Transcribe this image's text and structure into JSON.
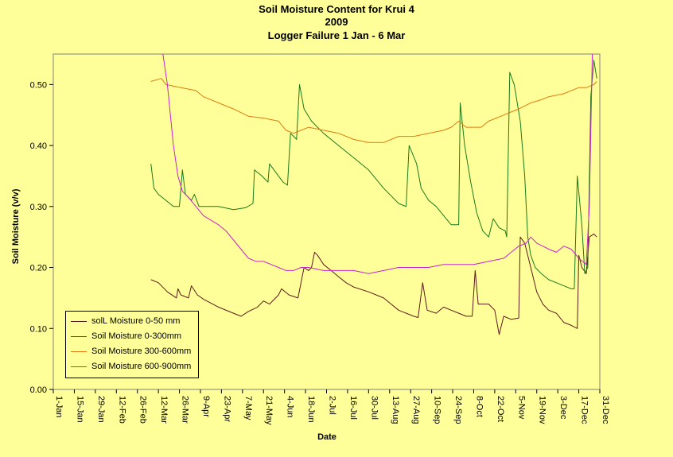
{
  "chart_data": {
    "type": "line",
    "title": "Soil Moisture Content for Krui 4",
    "subtitle": "2009",
    "subtitle2": "Logger Failure 1 Jan - 6 Mar",
    "xlabel": "Date",
    "ylabel": "Soil Moisture (v/v)",
    "x_ticks": [
      "1-Jan",
      "15-Jan",
      "29-Jan",
      "12-Feb",
      "26-Feb",
      "12-Mar",
      "26-Mar",
      "9-Apr",
      "23-Apr",
      "7-May",
      "21-May",
      "4-Jun",
      "18-Jun",
      "2-Jul",
      "16-Jul",
      "30-Jul",
      "13-Aug",
      "27-Aug",
      "10-Sep",
      "24-Sep",
      "8-Oct",
      "22-Oct",
      "5-Nov",
      "19-Nov",
      "3-Dec",
      "17-Dec",
      "31-Dec"
    ],
    "y_ticks": [
      "0.00",
      "0.10",
      "0.20",
      "0.30",
      "0.40",
      "0.50"
    ],
    "ylim": [
      0,
      0.55
    ],
    "x_unit": "day of year (1-Jan = 0)",
    "xlim": [
      0,
      364
    ],
    "legend_position": "bottom-left",
    "series": [
      {
        "name": "solL Moisture 0-50 mm",
        "color": "#5C1A1A",
        "points": [
          [
            65,
            0.18
          ],
          [
            70,
            0.175
          ],
          [
            76,
            0.16
          ],
          [
            82,
            0.15
          ],
          [
            83,
            0.165
          ],
          [
            85,
            0.155
          ],
          [
            90,
            0.15
          ],
          [
            92,
            0.17
          ],
          [
            96,
            0.155
          ],
          [
            100,
            0.148
          ],
          [
            110,
            0.135
          ],
          [
            120,
            0.125
          ],
          [
            125,
            0.12
          ],
          [
            130,
            0.128
          ],
          [
            136,
            0.135
          ],
          [
            140,
            0.145
          ],
          [
            144,
            0.14
          ],
          [
            150,
            0.155
          ],
          [
            152,
            0.165
          ],
          [
            157,
            0.155
          ],
          [
            163,
            0.15
          ],
          [
            165,
            0.175
          ],
          [
            167,
            0.2
          ],
          [
            170,
            0.195
          ],
          [
            172,
            0.2
          ],
          [
            174,
            0.225
          ],
          [
            176,
            0.22
          ],
          [
            180,
            0.205
          ],
          [
            185,
            0.195
          ],
          [
            190,
            0.185
          ],
          [
            195,
            0.175
          ],
          [
            200,
            0.168
          ],
          [
            210,
            0.16
          ],
          [
            220,
            0.15
          ],
          [
            230,
            0.13
          ],
          [
            240,
            0.12
          ],
          [
            243,
            0.118
          ],
          [
            246,
            0.175
          ],
          [
            249,
            0.13
          ],
          [
            255,
            0.125
          ],
          [
            260,
            0.135
          ],
          [
            265,
            0.13
          ],
          [
            270,
            0.125
          ],
          [
            275,
            0.12
          ],
          [
            279,
            0.12
          ],
          [
            281,
            0.195
          ],
          [
            283,
            0.14
          ],
          [
            290,
            0.14
          ],
          [
            294,
            0.13
          ],
          [
            297,
            0.09
          ],
          [
            300,
            0.12
          ],
          [
            305,
            0.115
          ],
          [
            310,
            0.117
          ],
          [
            311,
            0.25
          ],
          [
            314,
            0.24
          ],
          [
            318,
            0.2
          ],
          [
            322,
            0.16
          ],
          [
            326,
            0.14
          ],
          [
            330,
            0.13
          ],
          [
            335,
            0.125
          ],
          [
            340,
            0.11
          ],
          [
            345,
            0.105
          ],
          [
            349,
            0.1
          ],
          [
            350,
            0.22
          ],
          [
            352,
            0.2
          ],
          [
            355,
            0.19
          ],
          [
            357,
            0.25
          ],
          [
            360,
            0.255
          ],
          [
            362,
            0.25
          ]
        ]
      },
      {
        "name": "Soil Moisture 0-300mm",
        "color": "#1A7A1A",
        "points": [
          [
            65,
            0.37
          ],
          [
            67,
            0.33
          ],
          [
            70,
            0.32
          ],
          [
            75,
            0.31
          ],
          [
            80,
            0.3
          ],
          [
            84,
            0.3
          ],
          [
            86,
            0.36
          ],
          [
            88,
            0.32
          ],
          [
            92,
            0.31
          ],
          [
            94,
            0.32
          ],
          [
            97,
            0.3
          ],
          [
            103,
            0.3
          ],
          [
            110,
            0.3
          ],
          [
            120,
            0.295
          ],
          [
            128,
            0.298
          ],
          [
            133,
            0.305
          ],
          [
            134,
            0.36
          ],
          [
            139,
            0.35
          ],
          [
            143,
            0.34
          ],
          [
            144,
            0.37
          ],
          [
            147,
            0.36
          ],
          [
            153,
            0.34
          ],
          [
            156,
            0.335
          ],
          [
            158,
            0.42
          ],
          [
            162,
            0.41
          ],
          [
            164,
            0.5
          ],
          [
            167,
            0.46
          ],
          [
            172,
            0.44
          ],
          [
            180,
            0.42
          ],
          [
            190,
            0.4
          ],
          [
            200,
            0.38
          ],
          [
            210,
            0.36
          ],
          [
            220,
            0.33
          ],
          [
            230,
            0.305
          ],
          [
            235,
            0.3
          ],
          [
            237,
            0.4
          ],
          [
            242,
            0.37
          ],
          [
            245,
            0.33
          ],
          [
            250,
            0.31
          ],
          [
            255,
            0.3
          ],
          [
            260,
            0.285
          ],
          [
            265,
            0.27
          ],
          [
            270,
            0.27
          ],
          [
            271,
            0.47
          ],
          [
            274,
            0.4
          ],
          [
            278,
            0.34
          ],
          [
            282,
            0.29
          ],
          [
            286,
            0.26
          ],
          [
            290,
            0.25
          ],
          [
            293,
            0.28
          ],
          [
            297,
            0.265
          ],
          [
            301,
            0.26
          ],
          [
            302,
            0.25
          ],
          [
            304,
            0.52
          ],
          [
            307,
            0.5
          ],
          [
            311,
            0.44
          ],
          [
            314,
            0.35
          ],
          [
            316,
            0.25
          ],
          [
            318,
            0.22
          ],
          [
            321,
            0.2
          ],
          [
            325,
            0.19
          ],
          [
            330,
            0.18
          ],
          [
            335,
            0.175
          ],
          [
            340,
            0.17
          ],
          [
            345,
            0.165
          ],
          [
            347,
            0.165
          ],
          [
            349,
            0.35
          ],
          [
            352,
            0.27
          ],
          [
            354,
            0.19
          ],
          [
            356,
            0.2
          ],
          [
            358,
            0.48
          ],
          [
            360,
            0.54
          ],
          [
            362,
            0.51
          ]
        ]
      },
      {
        "name": "Soil Moisture 300-600mm",
        "color": "#E07A10",
        "points": [
          [
            65,
            0.505
          ],
          [
            72,
            0.51
          ],
          [
            75,
            0.5
          ],
          [
            85,
            0.495
          ],
          [
            95,
            0.49
          ],
          [
            100,
            0.48
          ],
          [
            110,
            0.47
          ],
          [
            120,
            0.46
          ],
          [
            130,
            0.448
          ],
          [
            140,
            0.445
          ],
          [
            150,
            0.44
          ],
          [
            155,
            0.425
          ],
          [
            160,
            0.42
          ],
          [
            170,
            0.43
          ],
          [
            180,
            0.425
          ],
          [
            190,
            0.42
          ],
          [
            200,
            0.41
          ],
          [
            210,
            0.405
          ],
          [
            220,
            0.405
          ],
          [
            230,
            0.415
          ],
          [
            240,
            0.415
          ],
          [
            250,
            0.42
          ],
          [
            260,
            0.425
          ],
          [
            265,
            0.43
          ],
          [
            270,
            0.44
          ],
          [
            275,
            0.43
          ],
          [
            280,
            0.43
          ],
          [
            285,
            0.43
          ],
          [
            290,
            0.44
          ],
          [
            295,
            0.445
          ],
          [
            300,
            0.45
          ],
          [
            305,
            0.455
          ],
          [
            310,
            0.46
          ],
          [
            318,
            0.47
          ],
          [
            325,
            0.475
          ],
          [
            330,
            0.48
          ],
          [
            340,
            0.485
          ],
          [
            350,
            0.495
          ],
          [
            355,
            0.495
          ],
          [
            360,
            0.5
          ],
          [
            362,
            0.505
          ]
        ]
      },
      {
        "name": "Soil Moisture 600-900mm",
        "color": "#CC22CC",
        "points": [
          [
            73,
            0.55
          ],
          [
            76,
            0.5
          ],
          [
            78,
            0.45
          ],
          [
            80,
            0.4
          ],
          [
            83,
            0.35
          ],
          [
            86,
            0.325
          ],
          [
            90,
            0.315
          ],
          [
            95,
            0.3
          ],
          [
            100,
            0.285
          ],
          [
            110,
            0.27
          ],
          [
            115,
            0.26
          ],
          [
            120,
            0.245
          ],
          [
            125,
            0.23
          ],
          [
            130,
            0.215
          ],
          [
            135,
            0.21
          ],
          [
            140,
            0.21
          ],
          [
            145,
            0.205
          ],
          [
            150,
            0.2
          ],
          [
            155,
            0.195
          ],
          [
            160,
            0.195
          ],
          [
            165,
            0.2
          ],
          [
            170,
            0.2
          ],
          [
            180,
            0.195
          ],
          [
            190,
            0.195
          ],
          [
            200,
            0.195
          ],
          [
            210,
            0.19
          ],
          [
            220,
            0.195
          ],
          [
            230,
            0.2
          ],
          [
            240,
            0.2
          ],
          [
            250,
            0.2
          ],
          [
            260,
            0.205
          ],
          [
            270,
            0.205
          ],
          [
            280,
            0.205
          ],
          [
            290,
            0.21
          ],
          [
            300,
            0.215
          ],
          [
            305,
            0.225
          ],
          [
            310,
            0.235
          ],
          [
            315,
            0.24
          ],
          [
            318,
            0.25
          ],
          [
            322,
            0.24
          ],
          [
            326,
            0.235
          ],
          [
            330,
            0.23
          ],
          [
            335,
            0.225
          ],
          [
            340,
            0.235
          ],
          [
            345,
            0.23
          ],
          [
            350,
            0.215
          ],
          [
            355,
            0.205
          ],
          [
            357,
            0.3
          ],
          [
            359,
            0.55
          ]
        ]
      }
    ]
  }
}
